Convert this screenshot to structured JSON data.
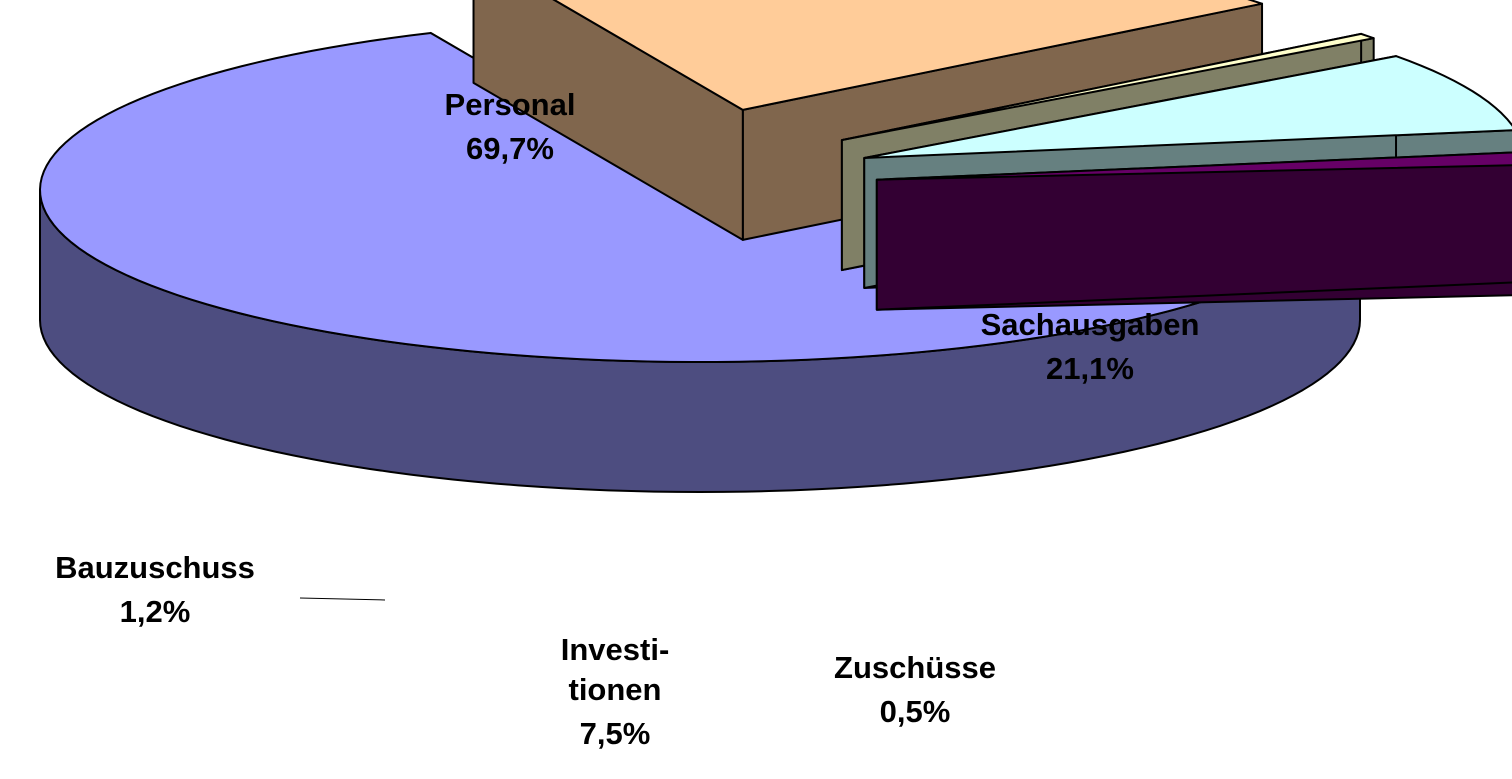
{
  "chart_data": {
    "type": "pie3d",
    "categories": [
      "Personal",
      "Sachausgaben",
      "Zuschüsse",
      "Investi-\ntionen",
      "Bauzuschuss"
    ],
    "values": [
      69.7,
      21.1,
      0.5,
      7.5,
      1.2
    ],
    "value_labels": [
      "69,7%",
      "21,1%",
      "0,5%",
      "7,5%",
      "1,2%"
    ],
    "colors": [
      "#9999ff",
      "#ffcc99",
      "#ffffcc",
      "#ccffff",
      "#660066"
    ]
  }
}
